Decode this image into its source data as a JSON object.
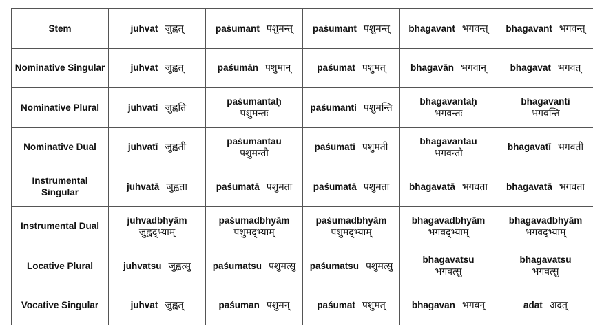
{
  "rows": [
    {
      "label": "Stem",
      "cells": [
        [
          "juhvat",
          "जुह्वत्",
          0
        ],
        [
          "paśumant",
          "पशुमन्त्",
          0
        ],
        [
          "paśumant",
          "पशुमन्त्",
          0
        ],
        [
          "bhagavant",
          "भगवन्त्",
          0
        ],
        [
          "bhagavant",
          "भगवन्त्",
          0
        ]
      ]
    },
    {
      "label": "Nominative Singular",
      "cells": [
        [
          "juhvat",
          "जुह्वत्",
          0
        ],
        [
          "paśumān",
          "पशुमान्",
          0
        ],
        [
          "paśumat",
          "पशुमत्",
          0
        ],
        [
          "bhagavān",
          "भगवान्",
          0
        ],
        [
          "bhagavat",
          "भगवत्",
          0
        ]
      ]
    },
    {
      "label": "Nominative Plural",
      "cells": [
        [
          "juhvati",
          "जुह्वति",
          0
        ],
        [
          "paśumantaḥ",
          "पशुमन्तः",
          1
        ],
        [
          "paśumanti",
          "पशुमन्ति",
          0
        ],
        [
          "bhagavantaḥ",
          "भगवन्तः",
          1
        ],
        [
          "bhagavanti",
          "भगवन्ति",
          1
        ]
      ]
    },
    {
      "label": "Nominative Dual",
      "cells": [
        [
          "juhvatī",
          "जुह्वती",
          0
        ],
        [
          "paśumantau",
          "पशुमन्तौ",
          1
        ],
        [
          "paśumatī",
          "पशुमती",
          0
        ],
        [
          "bhagavantau",
          "भगवन्तौ",
          1
        ],
        [
          "bhagavatī",
          "भगवती",
          0
        ]
      ]
    },
    {
      "label": "Instrumental Singular",
      "cells": [
        [
          "juhvatā",
          "जुह्वता",
          0
        ],
        [
          "paśumatā",
          "पशुमता",
          0
        ],
        [
          "paśumatā",
          "पशुमता",
          0
        ],
        [
          "bhagavatā",
          "भगवता",
          0
        ],
        [
          "bhagavatā",
          "भगवता",
          0
        ]
      ]
    },
    {
      "label": "Instrumental Dual",
      "cells": [
        [
          "juhvadbhyām",
          "जुह्वद्भ्याम्",
          1
        ],
        [
          "paśumadbhyām",
          "पशुमद्भ्याम्",
          1
        ],
        [
          "paśumadbhyām",
          "पशुमद्भ्याम्",
          1
        ],
        [
          "bhagavadbhyām",
          "भगवद्भ्याम्",
          1
        ],
        [
          "bhagavadbhyām",
          "भगवद्भ्याम्",
          1
        ]
      ]
    },
    {
      "label": "Locative Plural",
      "cells": [
        [
          "juhvatsu",
          "जुह्वत्सु",
          0
        ],
        [
          "paśumatsu",
          "पशुमत्सु",
          0
        ],
        [
          "paśumatsu",
          "पशुमत्सु",
          0
        ],
        [
          "bhagavatsu",
          "भगवत्सु",
          1
        ],
        [
          "bhagavatsu",
          "भगवत्सु",
          1
        ]
      ]
    },
    {
      "label": "Vocative Singular",
      "cells": [
        [
          "juhvat",
          "जुह्वत्",
          0
        ],
        [
          "paśuman",
          "पशुमन्",
          0
        ],
        [
          "paśumat",
          "पशुमत्",
          0
        ],
        [
          "bhagavan",
          "भगवन्",
          0
        ],
        [
          "adat",
          "अदत्",
          0
        ]
      ]
    }
  ]
}
